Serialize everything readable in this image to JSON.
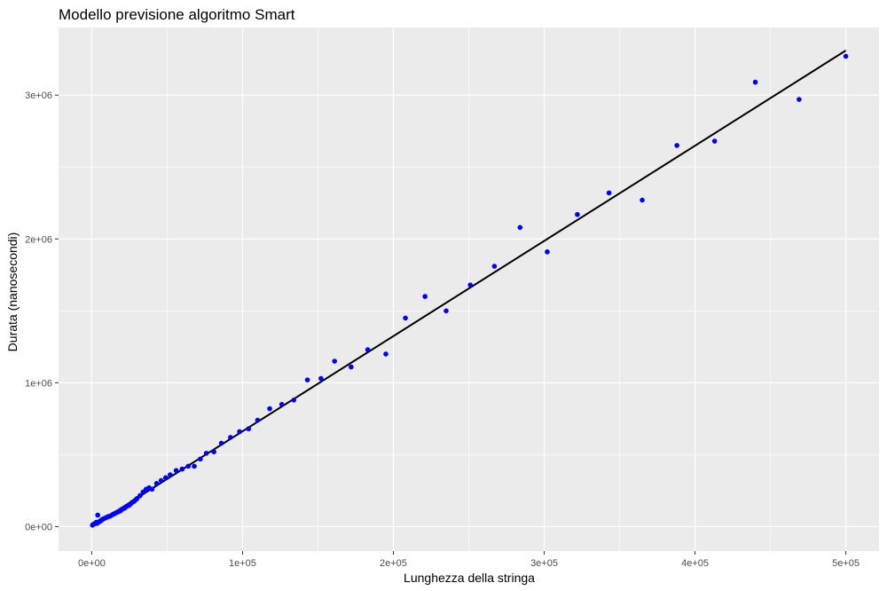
{
  "chart_data": {
    "type": "scatter",
    "title": "Modello previsione algoritmo Smart",
    "xlabel": "Lunghezza della stringa",
    "ylabel": "Durata (nanosecondi)",
    "xlim": [
      -22000,
      522000
    ],
    "ylim": [
      -170000,
      3470000
    ],
    "x_ticks": [
      0,
      100000,
      200000,
      300000,
      400000,
      500000
    ],
    "x_tick_labels": [
      "0e+00",
      "1e+05",
      "2e+05",
      "3e+05",
      "4e+05",
      "5e+05"
    ],
    "y_ticks": [
      0,
      1000000,
      2000000,
      3000000
    ],
    "y_tick_labels": [
      "0e+00",
      "1e+06",
      "2e+06",
      "3e+06"
    ],
    "grid": true,
    "point_color": "#0000ff",
    "line_color": "#000000",
    "panel_color": "#ebebeb",
    "grid_color": "#ffffff",
    "series": [
      {
        "type": "scatter",
        "x": [
          500,
          1000,
          1500,
          2000,
          2500,
          3000,
          3500,
          4000,
          4500,
          5000,
          5500,
          6000,
          6500,
          7000,
          8000,
          9000,
          10000,
          11000,
          12000,
          13000,
          14000,
          15000,
          16000,
          17000,
          18000,
          19000,
          20000,
          21000,
          22000,
          23000,
          24000,
          25000,
          26000,
          27000,
          28000,
          29000,
          30000,
          32000,
          34000,
          36000,
          38000,
          40000,
          43000,
          46000,
          49000,
          52000,
          56000,
          60000,
          64000,
          68000,
          72000,
          76000,
          81000,
          86000,
          92000,
          98000,
          104000,
          110000,
          118000,
          126000,
          134000,
          143000,
          152000,
          161000,
          172000,
          183000,
          195000,
          208000,
          221000,
          235000,
          251000,
          267000,
          284000,
          302000,
          322000,
          343000,
          365000,
          388000,
          413000,
          440000,
          469000,
          500000
        ],
        "y": [
          10000,
          15000,
          18000,
          20000,
          25000,
          30000,
          22000,
          80000,
          30000,
          35000,
          38000,
          40000,
          45000,
          50000,
          55000,
          60000,
          65000,
          70000,
          72000,
          78000,
          85000,
          90000,
          95000,
          100000,
          105000,
          110000,
          120000,
          125000,
          130000,
          140000,
          145000,
          150000,
          160000,
          170000,
          175000,
          185000,
          195000,
          215000,
          240000,
          260000,
          270000,
          260000,
          300000,
          320000,
          340000,
          360000,
          390000,
          400000,
          420000,
          420000,
          470000,
          510000,
          520000,
          580000,
          620000,
          660000,
          680000,
          740000,
          820000,
          850000,
          880000,
          1020000,
          1030000,
          1150000,
          1110000,
          1230000,
          1200000,
          1450000,
          1600000,
          1500000,
          1680000,
          1810000,
          2080000,
          1910000,
          2170000,
          2320000,
          2270000,
          2650000,
          2680000,
          3090000,
          2970000,
          3270000
        ]
      },
      {
        "type": "line",
        "x": [
          0,
          500000
        ],
        "y": [
          0,
          3310000
        ]
      }
    ]
  }
}
